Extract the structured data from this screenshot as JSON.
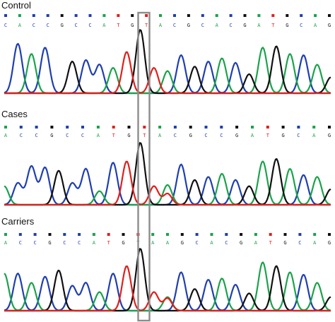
{
  "colors": {
    "A": "#1aa34a",
    "C": "#1f3fb0",
    "G": "#111111",
    "T": "#e0201c",
    "highlight_box": "#8c8c8c"
  },
  "highlight": {
    "position": 10
  },
  "chart_data": [
    {
      "type": "line",
      "title": "Control",
      "sequence": [
        "C",
        "A",
        "C",
        "C",
        "G",
        "C",
        "C",
        "A",
        "T",
        "G",
        "T",
        "A",
        "C",
        "G",
        "C",
        "A",
        "C",
        "G",
        "A",
        "T",
        "G",
        "C",
        "A",
        "G"
      ],
      "traces": [
        {
          "base": "C",
          "peaks": [
            [
              1,
              0.78
            ],
            [
              3,
              0.72
            ],
            [
              6,
              0.52
            ],
            [
              7,
              0.45
            ],
            [
              13,
              0.6
            ],
            [
              15,
              0.5
            ],
            [
              17,
              0.48
            ],
            [
              22,
              0.6
            ]
          ]
        },
        {
          "base": "A",
          "peaks": [
            [
              2,
              0.62
            ],
            [
              8,
              0.4
            ],
            [
              12,
              0.35
            ],
            [
              16,
              0.55
            ],
            [
              19,
              0.72
            ],
            [
              21,
              0.62
            ],
            [
              23,
              0.45
            ]
          ]
        },
        {
          "base": "G",
          "peaks": [
            [
              5,
              0.5
            ],
            [
              10,
              1.0
            ],
            [
              14,
              0.42
            ],
            [
              18,
              0.3
            ],
            [
              20,
              0.74
            ],
            [
              24,
              0.25
            ]
          ]
        },
        {
          "base": "T",
          "peaks": [
            [
              9,
              0.65
            ],
            [
              11,
              0.4
            ]
          ]
        }
      ]
    },
    {
      "type": "line",
      "title": "Cases",
      "sequence": [
        "A",
        "C",
        "C",
        "G",
        "C",
        "C",
        "A",
        "T",
        "G",
        "T",
        "A",
        "C",
        "G",
        "C",
        "C",
        "G",
        "A",
        "T",
        "G",
        "C",
        "A",
        "G"
      ],
      "traces": [
        {
          "base": "C",
          "peaks": [
            [
              1,
              0.35
            ],
            [
              2,
              0.62
            ],
            [
              3,
              0.6
            ],
            [
              5,
              0.35
            ],
            [
              6,
              0.58
            ],
            [
              8,
              0.68
            ],
            [
              13,
              0.65
            ],
            [
              15,
              0.45
            ],
            [
              17,
              0.4
            ],
            [
              22,
              0.48
            ]
          ]
        },
        {
          "base": "A",
          "peaks": [
            [
              0,
              0.3
            ],
            [
              7,
              0.22
            ],
            [
              12,
              0.32
            ],
            [
              16,
              0.5
            ],
            [
              19,
              0.7
            ],
            [
              21,
              0.58
            ],
            [
              23,
              0.45
            ]
          ]
        },
        {
          "base": "G",
          "peaks": [
            [
              4,
              0.55
            ],
            [
              10,
              1.0
            ],
            [
              14,
              0.4
            ],
            [
              18,
              0.3
            ],
            [
              20,
              0.74
            ],
            [
              24,
              0.25
            ]
          ]
        },
        {
          "base": "T",
          "peaks": [
            [
              9,
              0.7
            ],
            [
              11,
              0.3
            ],
            [
              12,
              0.18
            ]
          ]
        }
      ]
    },
    {
      "type": "line",
      "title": "Carriers",
      "sequence": [
        "A",
        "C",
        "C",
        "G",
        "C",
        "C",
        "A",
        "T",
        "G",
        "T",
        "A",
        "A",
        "G",
        "C",
        "A",
        "C",
        "G",
        "A",
        "T",
        "G",
        "C",
        "A",
        "G"
      ],
      "traces": [
        {
          "base": "C",
          "peaks": [
            [
              1,
              0.6
            ],
            [
              3,
              0.55
            ],
            [
              5,
              0.4
            ],
            [
              6,
              0.45
            ],
            [
              8,
              0.6
            ],
            [
              13,
              0.62
            ],
            [
              15,
              0.5
            ],
            [
              17,
              0.42
            ],
            [
              22,
              0.58
            ]
          ]
        },
        {
          "base": "A",
          "peaks": [
            [
              0,
              0.6
            ],
            [
              2,
              0.45
            ],
            [
              7,
              0.3
            ],
            [
              12,
              0.22
            ],
            [
              16,
              0.52
            ],
            [
              19,
              0.78
            ],
            [
              21,
              0.62
            ],
            [
              23,
              0.45
            ]
          ]
        },
        {
          "base": "G",
          "peaks": [
            [
              4,
              0.65
            ],
            [
              10,
              1.0
            ],
            [
              14,
              0.35
            ],
            [
              18,
              0.28
            ],
            [
              20,
              0.72
            ],
            [
              24,
              0.22
            ]
          ]
        },
        {
          "base": "T",
          "peaks": [
            [
              9,
              0.72
            ],
            [
              11,
              0.3
            ],
            [
              12,
              0.2
            ]
          ]
        }
      ]
    }
  ]
}
